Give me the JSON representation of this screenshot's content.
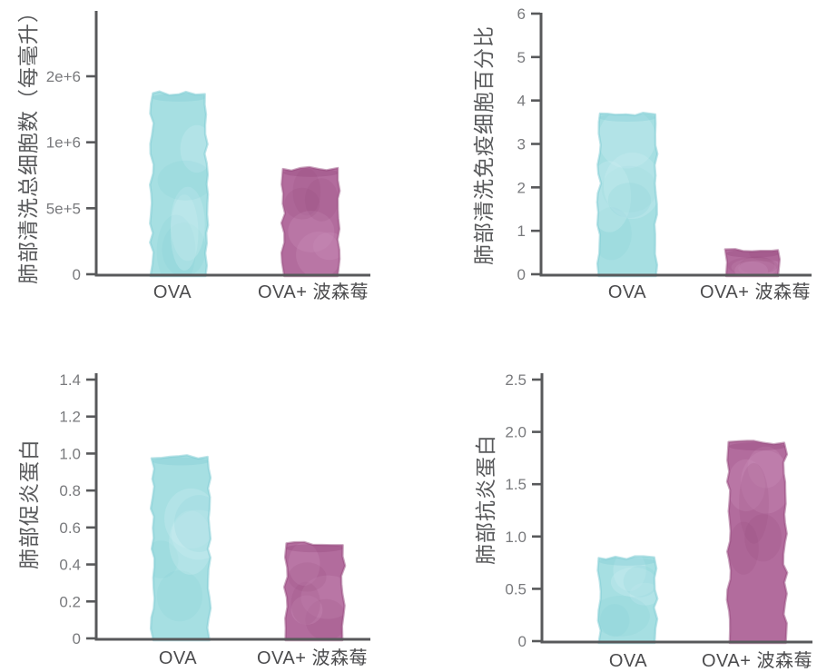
{
  "colors": {
    "background": "#ffffff",
    "axis": "#58595b",
    "tick_label": "#797a7d",
    "x_label": "#4b4b4d",
    "y_title": "#58595b",
    "series": {
      "cyan": {
        "base": "#a3dee1",
        "dark": "#7ecbd3",
        "light": "#cdeff1"
      },
      "berry": {
        "base": "#b0679a",
        "dark": "#95497d",
        "light": "#c98fb8"
      }
    }
  },
  "chart_data": [
    {
      "type": "bar",
      "ylabel": "肺部清洗总细胞数（每毫升）",
      "categories": [
        "OVA",
        "OVA+ 波森莓"
      ],
      "values": [
        1740000,
        800000
      ],
      "bar_color_keys": [
        "cyan",
        "berry"
      ],
      "ytick_values": [
        0,
        500000,
        1000000,
        2000000
      ],
      "ytick_labels": [
        "0",
        "5e+5",
        "1e+6",
        "2e+6"
      ],
      "ylim": [
        0,
        2000000
      ],
      "grid": false,
      "legend": "none",
      "ytick_layout": "equally-spaced"
    },
    {
      "type": "bar",
      "ylabel": "肺部清洗免疫细胞百分比",
      "categories": [
        "OVA",
        "OVA+ 波森莓"
      ],
      "values": [
        3.7,
        0.57
      ],
      "bar_color_keys": [
        "cyan",
        "berry"
      ],
      "ytick_values": [
        0,
        1,
        2,
        3,
        4,
        5,
        6
      ],
      "ytick_labels": [
        "0",
        "1",
        "2",
        "3",
        "4",
        "5",
        "6"
      ],
      "ylim": [
        0,
        6
      ],
      "grid": false,
      "legend": "none",
      "ytick_layout": "equally-spaced"
    },
    {
      "type": "bar",
      "ylabel": "肺部促炎蛋白",
      "categories": [
        "OVA",
        "OVA+ 波森莓"
      ],
      "values": [
        0.98,
        0.51
      ],
      "bar_color_keys": [
        "cyan",
        "berry"
      ],
      "ytick_values": [
        0,
        0.2,
        0.4,
        0.6,
        0.8,
        1.0,
        1.2,
        1.4
      ],
      "ytick_labels": [
        "0",
        "0.2",
        "0.4",
        "0.6",
        "0.8",
        "1.0",
        "1.2",
        "1.4"
      ],
      "ylim": [
        0,
        1.4
      ],
      "grid": false,
      "legend": "none",
      "ytick_layout": "equally-spaced"
    },
    {
      "type": "bar",
      "ylabel": "肺部抗炎蛋白",
      "categories": [
        "OVA",
        "OVA+ 波森莓"
      ],
      "values": [
        0.8,
        1.9
      ],
      "bar_color_keys": [
        "cyan",
        "berry"
      ],
      "ytick_values": [
        0,
        0.5,
        1.0,
        1.5,
        2.0,
        2.5
      ],
      "ytick_labels": [
        "0",
        "0.5",
        "1.0",
        "1.5",
        "2.0",
        "2.5"
      ],
      "ylim": [
        0,
        2.5
      ],
      "grid": false,
      "legend": "none",
      "ytick_layout": "equally-spaced"
    }
  ]
}
